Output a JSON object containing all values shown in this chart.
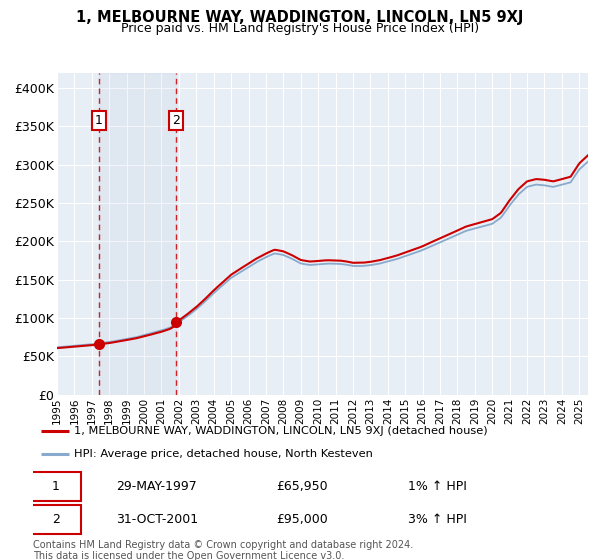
{
  "title": "1, MELBOURNE WAY, WADDINGTON, LINCOLN, LN5 9XJ",
  "subtitle": "Price paid vs. HM Land Registry's House Price Index (HPI)",
  "legend_line1": "1, MELBOURNE WAY, WADDINGTON, LINCOLN, LN5 9XJ (detached house)",
  "legend_line2": "HPI: Average price, detached house, North Kesteven",
  "sale1_date": "29-MAY-1997",
  "sale1_price": "£65,950",
  "sale1_hpi": "1% ↑ HPI",
  "sale2_date": "31-OCT-2001",
  "sale2_price": "£95,000",
  "sale2_hpi": "3% ↑ HPI",
  "footnote": "Contains HM Land Registry data © Crown copyright and database right 2024.\nThis data is licensed under the Open Government Licence v3.0.",
  "price_line_color": "#cc0000",
  "hpi_line_color": "#88aacc",
  "sale1_x": 1997.4,
  "sale1_y": 65950,
  "sale2_x": 2001.83,
  "sale2_y": 95000,
  "xmin": 1995,
  "xmax": 2025.5,
  "ymin": 0,
  "ymax": 420000,
  "yticks": [
    0,
    50000,
    100000,
    150000,
    200000,
    250000,
    300000,
    350000,
    400000
  ],
  "ytick_labels": [
    "£0",
    "£50K",
    "£100K",
    "£150K",
    "£200K",
    "£250K",
    "£300K",
    "£350K",
    "£400K"
  ],
  "xticks": [
    1995,
    1996,
    1997,
    1998,
    1999,
    2000,
    2001,
    2002,
    2003,
    2004,
    2005,
    2006,
    2007,
    2008,
    2009,
    2010,
    2011,
    2012,
    2013,
    2014,
    2015,
    2016,
    2017,
    2018,
    2019,
    2020,
    2021,
    2022,
    2023,
    2024,
    2025
  ],
  "background_color": "#e8eef5",
  "grid_color": "#ffffff"
}
